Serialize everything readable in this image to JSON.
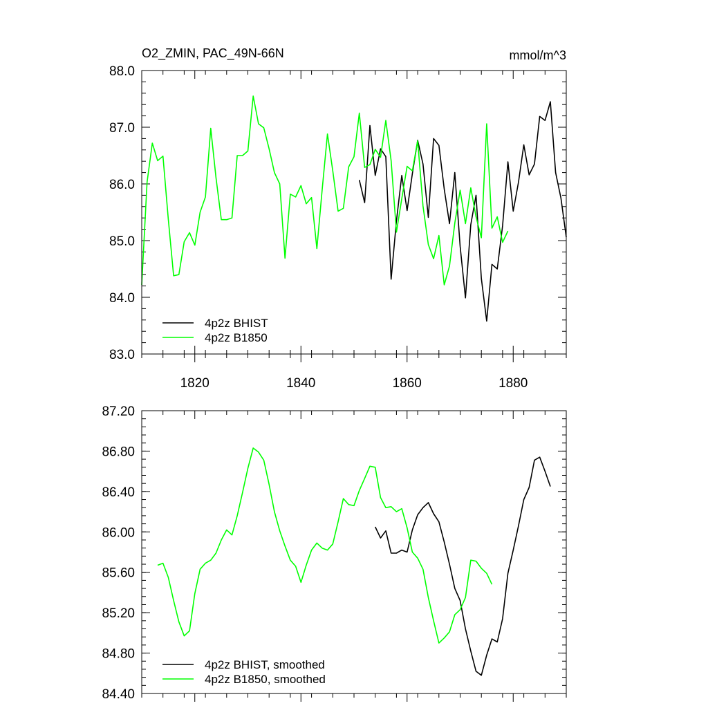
{
  "chart_data": [
    {
      "type": "line",
      "title": "O2_ZMIN, PAC_49N-66N",
      "units": "mmol/m^3",
      "xlabel": "",
      "ylabel": "",
      "xlim": [
        1810,
        1890
      ],
      "ylim": [
        83.0,
        88.0
      ],
      "x_ticks": [
        1820,
        1840,
        1860,
        1880
      ],
      "y_ticks": [
        83.0,
        84.0,
        85.0,
        86.0,
        87.0,
        88.0
      ],
      "y_tick_labels": [
        "83.0",
        "84.0",
        "85.0",
        "86.0",
        "87.0",
        "88.0"
      ],
      "legend_position": "bottom-left",
      "series": [
        {
          "name": "4p2z BHIST",
          "color": "#000000",
          "x0": 1851,
          "values": [
            86.07,
            85.67,
            87.03,
            86.15,
            86.62,
            86.48,
            84.32,
            85.35,
            86.15,
            85.53,
            86.18,
            86.77,
            86.35,
            85.41,
            86.8,
            86.68,
            85.91,
            85.3,
            86.2,
            84.9,
            83.99,
            85.28,
            85.8,
            84.33,
            83.58,
            84.58,
            84.5,
            85.26,
            86.39,
            85.52,
            86.03,
            86.69,
            86.16,
            86.35,
            87.19,
            87.12,
            87.45,
            86.2,
            85.75,
            85.06
          ]
        },
        {
          "name": "4p2z B1850",
          "color": "#00ff00",
          "x0": 1810,
          "values": [
            84.22,
            86.03,
            86.72,
            86.41,
            86.49,
            85.38,
            84.38,
            84.4,
            84.98,
            85.14,
            84.92,
            85.5,
            85.77,
            86.98,
            86.11,
            85.37,
            85.37,
            85.4,
            86.5,
            86.5,
            86.58,
            87.55,
            87.06,
            86.99,
            86.62,
            86.2,
            86.0,
            84.69,
            85.82,
            85.77,
            85.97,
            85.65,
            85.76,
            84.86,
            85.89,
            86.88,
            86.23,
            85.52,
            85.57,
            86.3,
            86.48,
            87.25,
            86.29,
            86.34,
            86.61,
            86.47,
            87.12,
            86.41,
            85.15,
            85.74,
            86.31,
            86.23,
            86.76,
            85.61,
            84.93,
            84.68,
            85.09,
            84.22,
            84.55,
            85.31,
            85.89,
            85.3,
            85.93,
            85.42,
            85.05,
            87.06,
            85.22,
            85.42,
            84.97,
            85.17
          ]
        }
      ]
    },
    {
      "type": "line",
      "title": "",
      "xlabel": "",
      "ylabel": "",
      "xlim": [
        1810,
        1890
      ],
      "ylim": [
        84.4,
        87.2
      ],
      "x_ticks": [
        1820,
        1840,
        1860,
        1880
      ],
      "y_ticks": [
        84.4,
        84.8,
        85.2,
        85.6,
        86.0,
        86.4,
        86.8,
        87.2
      ],
      "y_tick_labels": [
        "84.40",
        "84.80",
        "85.20",
        "85.60",
        "86.00",
        "86.40",
        "86.80",
        "87.20"
      ],
      "legend_position": "bottom-left",
      "series": [
        {
          "name": "4p2z BHIST, smoothed",
          "color": "#000000",
          "x0": 1854,
          "values": [
            86.05,
            85.94,
            86.01,
            85.79,
            85.79,
            85.82,
            85.8,
            86.02,
            86.17,
            86.24,
            86.29,
            86.18,
            86.1,
            85.9,
            85.68,
            85.44,
            85.32,
            85.04,
            84.82,
            84.62,
            84.58,
            84.78,
            84.94,
            84.91,
            85.14,
            85.59,
            85.82,
            86.06,
            86.32,
            86.44,
            86.71,
            86.74,
            86.6,
            86.45
          ]
        },
        {
          "name": "4p2z B1850, smoothed",
          "color": "#00ff00",
          "x0": 1813,
          "values": [
            85.67,
            85.69,
            85.55,
            85.32,
            85.11,
            84.97,
            85.02,
            85.39,
            85.63,
            85.69,
            85.72,
            85.79,
            85.92,
            86.02,
            85.97,
            86.16,
            86.39,
            86.63,
            86.83,
            86.79,
            86.71,
            86.47,
            86.2,
            86.01,
            85.86,
            85.72,
            85.66,
            85.5,
            85.67,
            85.82,
            85.89,
            85.84,
            85.82,
            85.88,
            86.1,
            86.33,
            86.27,
            86.26,
            86.41,
            86.53,
            86.65,
            86.64,
            86.34,
            86.24,
            86.25,
            86.2,
            86.23,
            86.04,
            85.8,
            85.74,
            85.63,
            85.35,
            85.12,
            84.9,
            84.95,
            85.01,
            85.18,
            85.23,
            85.35,
            85.72,
            85.71,
            85.64,
            85.59,
            85.48
          ]
        }
      ]
    }
  ]
}
